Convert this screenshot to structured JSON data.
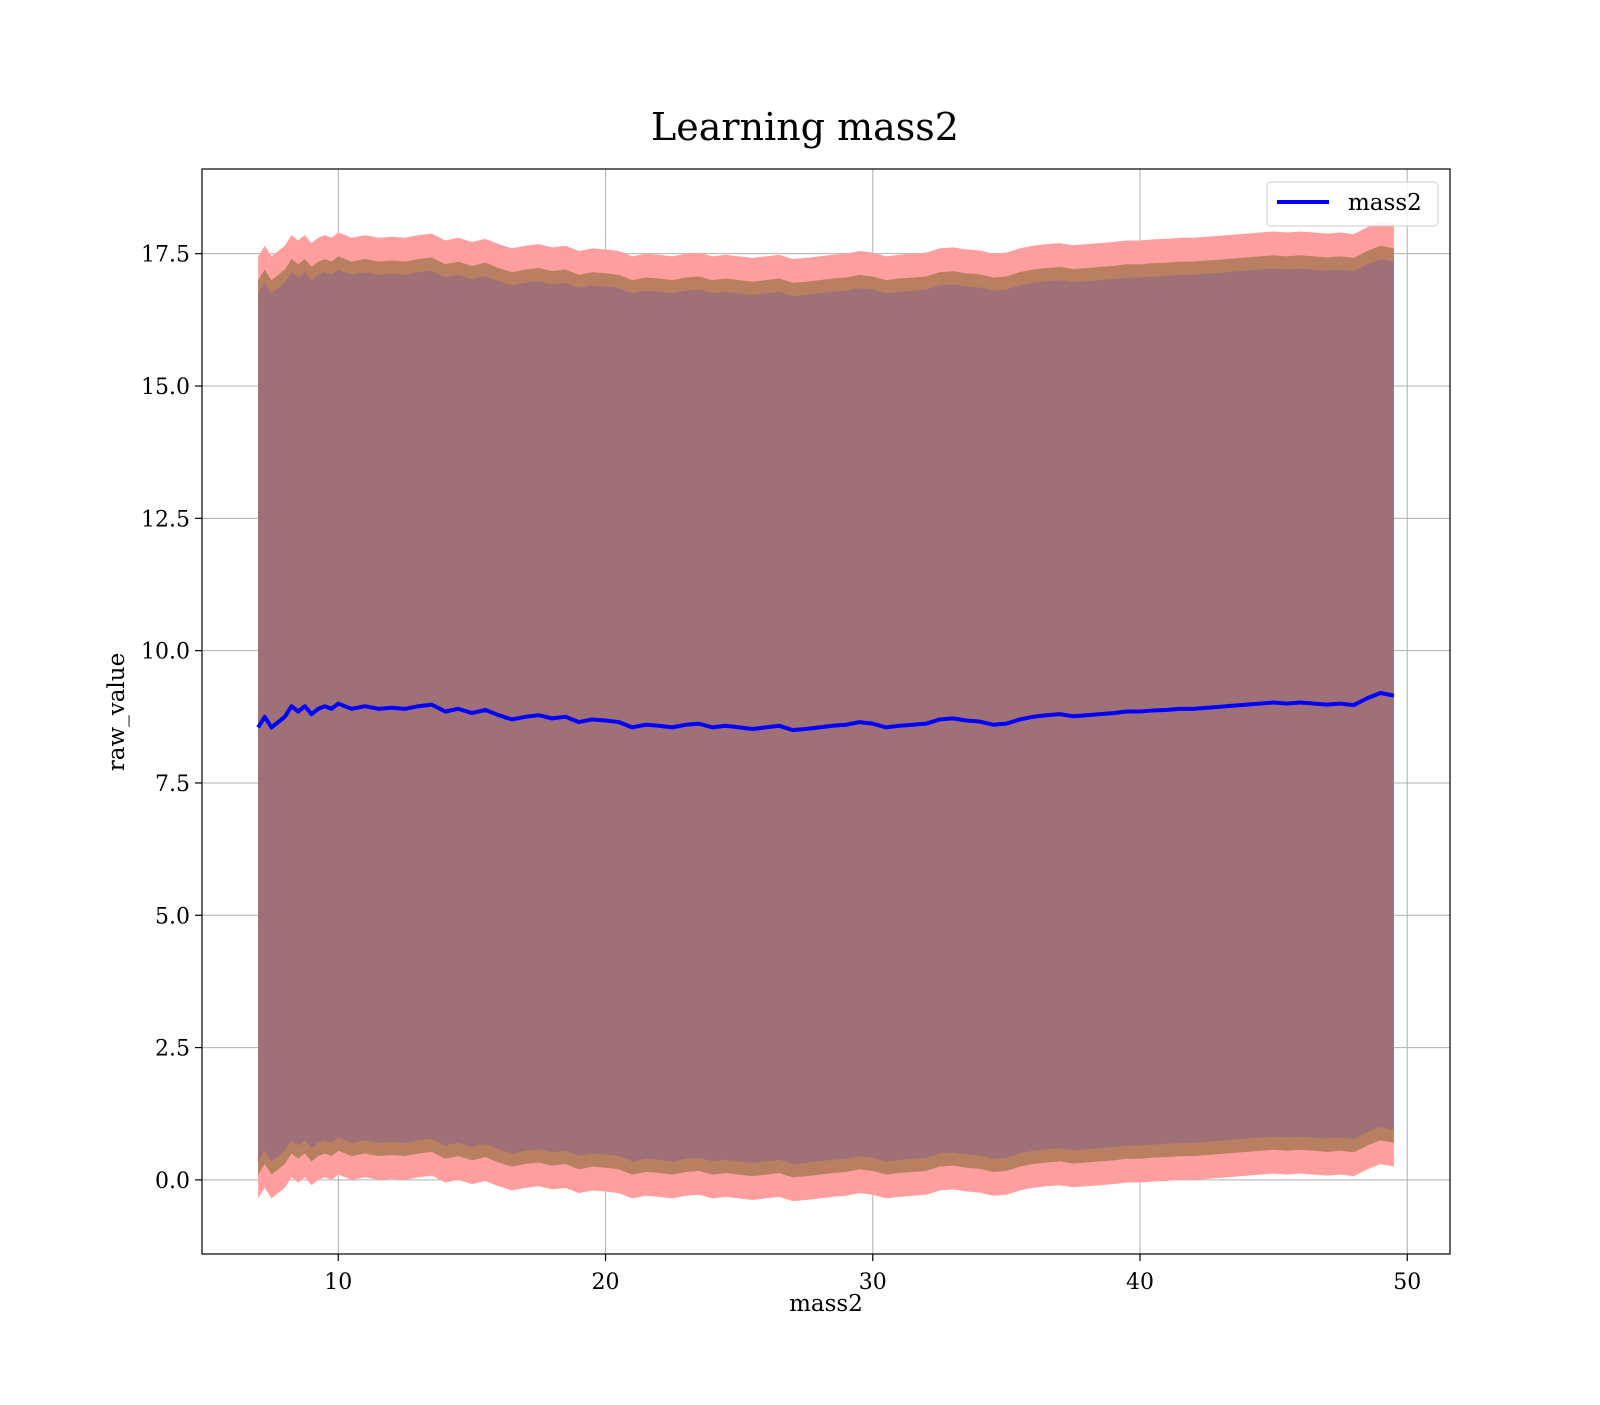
{
  "chart_data": {
    "type": "line",
    "title": "Learning mass2",
    "xlabel": "mass2",
    "ylabel": "raw_value",
    "xlim": [
      4.9,
      51.6
    ],
    "ylim": [
      -1.4,
      19.1
    ],
    "x_ticks": [
      10,
      20,
      30,
      40,
      50
    ],
    "x_tick_labels": [
      "10",
      "20",
      "30",
      "40",
      "50"
    ],
    "y_ticks": [
      0.0,
      2.5,
      5.0,
      7.5,
      10.0,
      12.5,
      15.0,
      17.5
    ],
    "y_tick_labels": [
      "0.0",
      "2.5",
      "5.0",
      "7.5",
      "10.0",
      "12.5",
      "15.0",
      "17.5"
    ],
    "grid": true,
    "legend_position": "top-right",
    "series": [
      {
        "name": "mass2",
        "color": "#0000ff",
        "x": [
          7.0,
          7.25,
          7.5,
          7.75,
          8.0,
          8.25,
          8.5,
          8.75,
          9.0,
          9.25,
          9.5,
          9.75,
          10.0,
          10.5,
          11.0,
          11.5,
          12.0,
          12.5,
          13.0,
          13.5,
          14.0,
          14.5,
          15.0,
          15.5,
          16.0,
          16.5,
          17.0,
          17.5,
          18.0,
          18.5,
          19.0,
          19.5,
          20.0,
          20.5,
          21.0,
          21.5,
          22.0,
          22.5,
          23.0,
          23.5,
          24.0,
          24.5,
          25.0,
          25.5,
          26.0,
          26.5,
          27.0,
          27.5,
          28.0,
          28.5,
          29.0,
          29.5,
          30.0,
          30.5,
          31.0,
          31.5,
          32.0,
          32.5,
          33.0,
          33.5,
          34.0,
          34.5,
          35.0,
          35.5,
          36.0,
          36.5,
          37.0,
          37.5,
          38.0,
          38.5,
          39.0,
          39.5,
          40.0,
          40.5,
          41.0,
          41.5,
          42.0,
          42.5,
          43.0,
          43.5,
          44.0,
          44.5,
          45.0,
          45.5,
          46.0,
          46.5,
          47.0,
          47.5,
          48.0,
          48.5,
          49.0,
          49.5
        ],
        "y": [
          8.55,
          8.75,
          8.55,
          8.65,
          8.75,
          8.95,
          8.85,
          8.95,
          8.8,
          8.9,
          8.95,
          8.9,
          9.0,
          8.9,
          8.95,
          8.9,
          8.92,
          8.9,
          8.95,
          8.98,
          8.85,
          8.9,
          8.82,
          8.88,
          8.78,
          8.7,
          8.75,
          8.78,
          8.72,
          8.75,
          8.65,
          8.7,
          8.68,
          8.65,
          8.55,
          8.6,
          8.58,
          8.55,
          8.6,
          8.62,
          8.55,
          8.58,
          8.55,
          8.52,
          8.55,
          8.58,
          8.5,
          8.52,
          8.55,
          8.58,
          8.6,
          8.65,
          8.62,
          8.55,
          8.58,
          8.6,
          8.62,
          8.7,
          8.72,
          8.68,
          8.66,
          8.6,
          8.62,
          8.7,
          8.75,
          8.78,
          8.8,
          8.76,
          8.78,
          8.8,
          8.82,
          8.85,
          8.85,
          8.87,
          8.88,
          8.9,
          8.9,
          8.92,
          8.94,
          8.96,
          8.98,
          9.0,
          9.02,
          9.0,
          9.02,
          9.0,
          8.98,
          9.0,
          8.97,
          9.1,
          9.2,
          9.15
        ],
        "band_inner_halfwidth": 8.45,
        "band_outer_halfwidth": 8.9
      }
    ],
    "colors": {
      "band_outer": "#ff9e9e",
      "band_inner": "#b88060",
      "band_core": "#a07078",
      "line": "#0000ff",
      "grid": "#b0b0b0"
    }
  }
}
